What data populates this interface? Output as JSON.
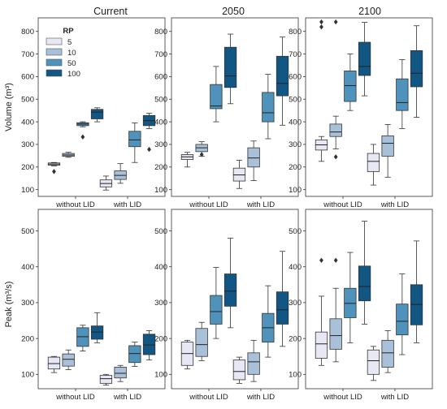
{
  "colors": {
    "5": "#e8e8f4",
    "10": "#a9c0d9",
    "50": "#4f93bd",
    "100": "#125684"
  },
  "legend": {
    "title": "RP",
    "items": [
      "5",
      "10",
      "50",
      "100"
    ]
  },
  "groups": [
    "without LID",
    "with LID"
  ],
  "rows": [
    {
      "ylabel": "Volume (m³)",
      "ticks": [
        100,
        200,
        300,
        400,
        500,
        600,
        700,
        800
      ]
    },
    {
      "ylabel": "Peak (m³/s)",
      "ticks": [
        100,
        200,
        300,
        400,
        500
      ]
    }
  ],
  "chart_data": [
    {
      "type": "box",
      "title": "Current",
      "ylabel": "Volume (m³)",
      "ylim": [
        70,
        860
      ],
      "categories": [
        "without LID",
        "with LID"
      ],
      "legend_title": "RP",
      "series": [
        {
          "name": "5",
          "boxes": [
            {
              "category": "without LID",
              "whislo": 205,
              "q1": 208,
              "med": 213,
              "q3": 218,
              "whishi": 220,
              "fliers": [
                180
              ]
            },
            {
              "category": "with LID",
              "whislo": 98,
              "q1": 112,
              "med": 127,
              "q3": 143,
              "whishi": 160,
              "fliers": []
            }
          ]
        },
        {
          "name": "10",
          "boxes": [
            {
              "category": "without LID",
              "whislo": 243,
              "q1": 247,
              "med": 253,
              "q3": 260,
              "whishi": 265,
              "fliers": []
            },
            {
              "category": "with LID",
              "whislo": 128,
              "q1": 145,
              "med": 163,
              "q3": 183,
              "whishi": 215,
              "fliers": []
            }
          ]
        },
        {
          "name": "50",
          "boxes": [
            {
              "category": "without LID",
              "whislo": 378,
              "q1": 383,
              "med": 390,
              "q3": 396,
              "whishi": 400,
              "fliers": [
                333
              ]
            },
            {
              "category": "with LID",
              "whislo": 220,
              "q1": 290,
              "med": 320,
              "q3": 358,
              "whishi": 395,
              "fliers": []
            }
          ]
        },
        {
          "name": "100",
          "boxes": [
            {
              "category": "without LID",
              "whislo": 400,
              "q1": 413,
              "med": 443,
              "q3": 455,
              "whishi": 462,
              "fliers": []
            },
            {
              "category": "with LID",
              "whislo": 370,
              "q1": 383,
              "med": 405,
              "q3": 428,
              "whishi": 438,
              "fliers": [
                278
              ]
            }
          ]
        }
      ]
    },
    {
      "type": "box",
      "title": "2050",
      "ylabel": "",
      "ylim": [
        70,
        860
      ],
      "categories": [
        "without LID",
        "with LID"
      ],
      "series": [
        {
          "name": "5",
          "boxes": [
            {
              "category": "without LID",
              "whislo": 200,
              "q1": 233,
              "med": 245,
              "q3": 255,
              "whishi": 265,
              "fliers": []
            },
            {
              "category": "with LID",
              "whislo": 105,
              "q1": 138,
              "med": 165,
              "q3": 195,
              "whishi": 230,
              "fliers": []
            }
          ]
        },
        {
          "name": "10",
          "boxes": [
            {
              "category": "without LID",
              "whislo": 248,
              "q1": 268,
              "med": 285,
              "q3": 300,
              "whishi": 312,
              "fliers": [
                255
              ]
            },
            {
              "category": "with LID",
              "whislo": 140,
              "q1": 200,
              "med": 240,
              "q3": 285,
              "whishi": 315,
              "fliers": []
            }
          ]
        },
        {
          "name": "50",
          "boxes": [
            {
              "category": "without LID",
              "whislo": 400,
              "q1": 458,
              "med": 470,
              "q3": 565,
              "whishi": 645,
              "fliers": []
            },
            {
              "category": "with LID",
              "whislo": 325,
              "q1": 400,
              "med": 440,
              "q3": 530,
              "whishi": 610,
              "fliers": []
            }
          ]
        },
        {
          "name": "100",
          "boxes": [
            {
              "category": "without LID",
              "whislo": 480,
              "q1": 552,
              "med": 603,
              "q3": 730,
              "whishi": 788,
              "fliers": []
            },
            {
              "category": "with LID",
              "whislo": 385,
              "q1": 515,
              "med": 570,
              "q3": 690,
              "whishi": 775,
              "fliers": []
            }
          ]
        }
      ]
    },
    {
      "type": "box",
      "title": "2100",
      "ylabel": "",
      "ylim": [
        70,
        860
      ],
      "categories": [
        "without LID",
        "with LID"
      ],
      "series": [
        {
          "name": "5",
          "boxes": [
            {
              "category": "without LID",
              "whislo": 225,
              "q1": 275,
              "med": 298,
              "q3": 320,
              "whishi": 335,
              "fliers": [
                820,
                842
              ]
            },
            {
              "category": "with LID",
              "whislo": 120,
              "q1": 180,
              "med": 225,
              "q3": 260,
              "whishi": 300,
              "fliers": []
            }
          ]
        },
        {
          "name": "10",
          "boxes": [
            {
              "category": "without LID",
              "whislo": 280,
              "q1": 335,
              "med": 355,
              "q3": 390,
              "whishi": 425,
              "fliers": [
                245,
                842
              ]
            },
            {
              "category": "with LID",
              "whislo": 155,
              "q1": 248,
              "med": 305,
              "q3": 338,
              "whishi": 388,
              "fliers": []
            }
          ]
        },
        {
          "name": "50",
          "boxes": [
            {
              "category": "without LID",
              "whislo": 450,
              "q1": 490,
              "med": 560,
              "q3": 625,
              "whishi": 700,
              "fliers": []
            },
            {
              "category": "with LID",
              "whislo": 370,
              "q1": 450,
              "med": 485,
              "q3": 590,
              "whishi": 675,
              "fliers": []
            }
          ]
        },
        {
          "name": "100",
          "boxes": [
            {
              "category": "without LID",
              "whislo": 515,
              "q1": 605,
              "med": 645,
              "q3": 752,
              "whishi": 840,
              "fliers": []
            },
            {
              "category": "with LID",
              "whislo": 420,
              "q1": 555,
              "med": 615,
              "q3": 715,
              "whishi": 825,
              "fliers": []
            }
          ]
        }
      ]
    },
    {
      "type": "box",
      "title": "",
      "ylabel": "Peak (m³/s)",
      "ylim": [
        60,
        560
      ],
      "categories": [
        "without LID",
        "with LID"
      ],
      "series": [
        {
          "name": "5",
          "boxes": [
            {
              "category": "without LID",
              "whislo": 105,
              "q1": 115,
              "med": 130,
              "q3": 148,
              "whishi": 150,
              "fliers": []
            },
            {
              "category": "with LID",
              "whislo": 70,
              "q1": 75,
              "med": 88,
              "q3": 97,
              "whishi": 100,
              "fliers": []
            }
          ]
        },
        {
          "name": "10",
          "boxes": [
            {
              "category": "without LID",
              "whislo": 113,
              "q1": 123,
              "med": 142,
              "q3": 157,
              "whishi": 168,
              "fliers": []
            },
            {
              "category": "with LID",
              "whislo": 80,
              "q1": 90,
              "med": 103,
              "q3": 120,
              "whishi": 125,
              "fliers": []
            }
          ]
        },
        {
          "name": "50",
          "boxes": [
            {
              "category": "without LID",
              "whislo": 165,
              "q1": 178,
              "med": 205,
              "q3": 230,
              "whishi": 237,
              "fliers": []
            },
            {
              "category": "with LID",
              "whislo": 122,
              "q1": 133,
              "med": 158,
              "q3": 180,
              "whishi": 190,
              "fliers": []
            }
          ]
        },
        {
          "name": "100",
          "boxes": [
            {
              "category": "without LID",
              "whislo": 188,
              "q1": 198,
              "med": 218,
              "q3": 235,
              "whishi": 272,
              "fliers": []
            },
            {
              "category": "with LID",
              "whislo": 140,
              "q1": 155,
              "med": 182,
              "q3": 212,
              "whishi": 222,
              "fliers": []
            }
          ]
        }
      ]
    },
    {
      "type": "box",
      "title": "",
      "ylabel": "",
      "ylim": [
        60,
        560
      ],
      "categories": [
        "without LID",
        "with LID"
      ],
      "series": [
        {
          "name": "5",
          "boxes": [
            {
              "category": "without LID",
              "whislo": 115,
              "q1": 125,
              "med": 158,
              "q3": 190,
              "whishi": 195,
              "fliers": []
            },
            {
              "category": "with LID",
              "whislo": 75,
              "q1": 85,
              "med": 108,
              "q3": 140,
              "whishi": 148,
              "fliers": []
            }
          ]
        },
        {
          "name": "10",
          "boxes": [
            {
              "category": "without LID",
              "whislo": 138,
              "q1": 150,
              "med": 183,
              "q3": 228,
              "whishi": 245,
              "fliers": []
            },
            {
              "category": "with LID",
              "whislo": 80,
              "q1": 100,
              "med": 135,
              "q3": 160,
              "whishi": 195,
              "fliers": []
            }
          ]
        },
        {
          "name": "50",
          "boxes": [
            {
              "category": "without LID",
              "whislo": 200,
              "q1": 240,
              "med": 275,
              "q3": 320,
              "whishi": 398,
              "fliers": []
            },
            {
              "category": "with LID",
              "whislo": 148,
              "q1": 190,
              "med": 230,
              "q3": 270,
              "whishi": 347,
              "fliers": []
            }
          ]
        },
        {
          "name": "100",
          "boxes": [
            {
              "category": "without LID",
              "whislo": 230,
              "q1": 290,
              "med": 332,
              "q3": 380,
              "whishi": 480,
              "fliers": []
            },
            {
              "category": "with LID",
              "whislo": 178,
              "q1": 240,
              "med": 280,
              "q3": 330,
              "whishi": 443,
              "fliers": []
            }
          ]
        }
      ]
    },
    {
      "type": "box",
      "title": "",
      "ylabel": "",
      "ylim": [
        60,
        560
      ],
      "categories": [
        "without LID",
        "with LID"
      ],
      "series": [
        {
          "name": "5",
          "boxes": [
            {
              "category": "without LID",
              "whislo": 125,
              "q1": 145,
              "med": 185,
              "q3": 218,
              "whishi": 318,
              "fliers": [
                418
              ]
            },
            {
              "category": "with LID",
              "whislo": 83,
              "q1": 100,
              "med": 138,
              "q3": 168,
              "whishi": 178,
              "fliers": []
            }
          ]
        },
        {
          "name": "10",
          "boxes": [
            {
              "category": "without LID",
              "whislo": 135,
              "q1": 170,
              "med": 208,
              "q3": 255,
              "whishi": 340,
              "fliers": [
                418
              ]
            },
            {
              "category": "with LID",
              "whislo": 105,
              "q1": 120,
              "med": 160,
              "q3": 195,
              "whishi": 222,
              "fliers": []
            }
          ]
        },
        {
          "name": "50",
          "boxes": [
            {
              "category": "without LID",
              "whislo": 188,
              "q1": 258,
              "med": 298,
              "q3": 340,
              "whishi": 440,
              "fliers": []
            },
            {
              "category": "with LID",
              "whislo": 155,
              "q1": 210,
              "med": 248,
              "q3": 296,
              "whishi": 380,
              "fliers": []
            }
          ]
        },
        {
          "name": "100",
          "boxes": [
            {
              "category": "without LID",
              "whislo": 240,
              "q1": 305,
              "med": 345,
              "q3": 402,
              "whishi": 527,
              "fliers": []
            },
            {
              "category": "with LID",
              "whislo": 188,
              "q1": 238,
              "med": 295,
              "q3": 350,
              "whishi": 472,
              "fliers": []
            }
          ]
        }
      ]
    }
  ]
}
